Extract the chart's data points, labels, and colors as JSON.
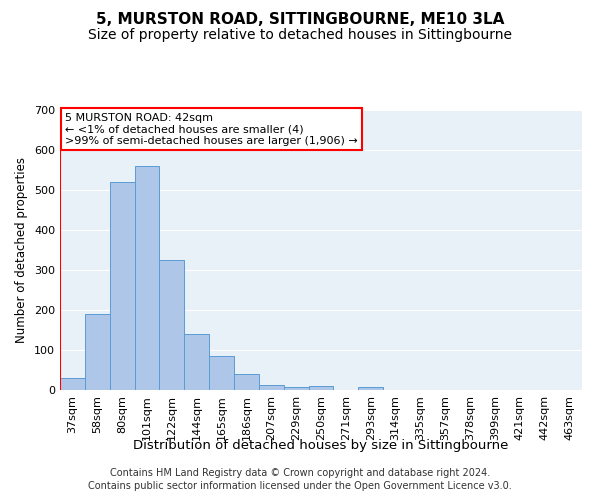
{
  "title": "5, MURSTON ROAD, SITTINGBOURNE, ME10 3LA",
  "subtitle": "Size of property relative to detached houses in Sittingbourne",
  "xlabel": "Distribution of detached houses by size in Sittingbourne",
  "ylabel": "Number of detached properties",
  "categories": [
    "37sqm",
    "58sqm",
    "80sqm",
    "101sqm",
    "122sqm",
    "144sqm",
    "165sqm",
    "186sqm",
    "207sqm",
    "229sqm",
    "250sqm",
    "271sqm",
    "293sqm",
    "314sqm",
    "335sqm",
    "357sqm",
    "378sqm",
    "399sqm",
    "421sqm",
    "442sqm",
    "463sqm"
  ],
  "values": [
    30,
    190,
    520,
    560,
    325,
    140,
    85,
    40,
    12,
    8,
    10,
    0,
    8,
    0,
    0,
    0,
    0,
    0,
    0,
    0,
    0
  ],
  "bar_color": "#aec6e8",
  "bar_edge_color": "#5b9bd5",
  "annotation_text": "5 MURSTON ROAD: 42sqm\n← <1% of detached houses are smaller (4)\n>99% of semi-detached houses are larger (1,906) →",
  "annotation_box_color": "#ffffff",
  "annotation_box_edge_color": "#ff0000",
  "ylim": [
    0,
    700
  ],
  "yticks": [
    0,
    100,
    200,
    300,
    400,
    500,
    600,
    700
  ],
  "background_color": "#e8f0f8",
  "grid_color": "#ffffff",
  "footer_line1": "Contains HM Land Registry data © Crown copyright and database right 2024.",
  "footer_line2": "Contains public sector information licensed under the Open Government Licence v3.0.",
  "title_fontsize": 11,
  "subtitle_fontsize": 10,
  "xlabel_fontsize": 9.5,
  "ylabel_fontsize": 8.5,
  "tick_fontsize": 8,
  "annotation_fontsize": 8,
  "footer_fontsize": 7
}
